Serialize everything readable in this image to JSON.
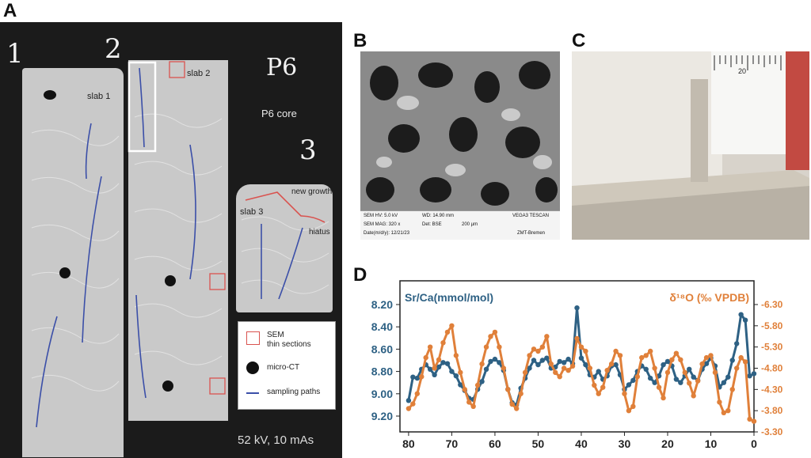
{
  "panels": {
    "a": {
      "letter": "A",
      "slab1": "slab 1",
      "slab2": "slab 2",
      "slab3": "slab 3",
      "core": "P6 core",
      "new_growth": "new growth",
      "hiatus": "hiatus",
      "hand1": "1",
      "hand2": "2",
      "hand3": "3",
      "hand_p6": "P6",
      "legend": {
        "sem_line1": "SEM",
        "sem_line2": "thin sections",
        "micro_ct": "micro-CT",
        "paths": "sampling paths"
      },
      "kv": "52 kV, 10 mAs"
    },
    "b": {
      "letter": "B",
      "sem": {
        "hv": "SEM HV: 5.0 kV",
        "wd": "WD: 14.90 mm",
        "vendor": "VEGA3 TESCAN",
        "mag": "SEM MAG: 320 x",
        "det": "Det: BSE",
        "scale": "200 µm",
        "date": "Date(m/d/y): 12/21/23",
        "lab": "ZMT-Bremen"
      }
    },
    "c": {
      "letter": "C",
      "ruler_label": "20"
    },
    "d": {
      "letter": "D"
    }
  },
  "colors": {
    "srca": "#2e6184",
    "d18o": "#e0803a",
    "sampling": "#3b4fa8",
    "sem_box": "#d9534f"
  },
  "chart_data": {
    "type": "line",
    "xlabel": "",
    "xlim": [
      82,
      0
    ],
    "x_ticks": [
      "80",
      "70",
      "60",
      "50",
      "40",
      "30",
      "20",
      "10",
      "0"
    ],
    "y_left": {
      "label": "Sr/Ca(mmol/mol)",
      "ticks": [
        "8.20",
        "8.40",
        "8.60",
        "8.80",
        "9.00",
        "9.20"
      ],
      "range": [
        8.2,
        9.2
      ],
      "inverted": true
    },
    "y_right": {
      "label": "δ¹⁸O (‰ VPDB)",
      "ticks": [
        "-6.30",
        "-5.80",
        "-5.30",
        "-4.80",
        "-4.30",
        "-3.80",
        "-3.30"
      ],
      "range": [
        -6.3,
        -3.3
      ],
      "inverted": false
    },
    "series": [
      {
        "name": "Sr/Ca(mmol/mol)",
        "axis": "left",
        "x": [
          80,
          79,
          78,
          77,
          76,
          75,
          74,
          73,
          72,
          71,
          70,
          69,
          68,
          67,
          66,
          65,
          64,
          63,
          62,
          61,
          60,
          59,
          58,
          57,
          56,
          55,
          54,
          53,
          52,
          51,
          50,
          49,
          48,
          47,
          46,
          45,
          44,
          43,
          42,
          41,
          40,
          39,
          38,
          37,
          36,
          35,
          34,
          33,
          32,
          31,
          30,
          29,
          28,
          27,
          26,
          25,
          24,
          23,
          22,
          21,
          20,
          19,
          18,
          17,
          16,
          15,
          14,
          13,
          12,
          11,
          10,
          9,
          8,
          7,
          6,
          5,
          4,
          3,
          2,
          1,
          0
        ],
        "values": [
          9.06,
          8.85,
          8.86,
          8.78,
          8.74,
          8.78,
          8.83,
          8.76,
          8.72,
          8.73,
          8.8,
          8.84,
          8.92,
          8.97,
          9.04,
          9.05,
          8.96,
          8.89,
          8.78,
          8.71,
          8.69,
          8.72,
          8.79,
          8.96,
          9.08,
          9.1,
          8.95,
          8.86,
          8.77,
          8.7,
          8.74,
          8.7,
          8.68,
          8.77,
          8.76,
          8.71,
          8.72,
          8.69,
          8.73,
          8.23,
          8.68,
          8.74,
          8.83,
          8.85,
          8.8,
          8.87,
          8.84,
          8.75,
          8.74,
          8.83,
          8.96,
          8.92,
          8.88,
          8.8,
          8.75,
          8.78,
          8.86,
          8.9,
          8.84,
          8.74,
          8.71,
          8.75,
          8.87,
          8.9,
          8.84,
          8.78,
          8.85,
          8.88,
          8.78,
          8.73,
          8.68,
          8.75,
          8.94,
          8.9,
          8.85,
          8.7,
          8.55,
          8.29,
          8.34,
          8.84,
          8.82
        ]
      },
      {
        "name": "δ¹⁸O (‰ VPDB)",
        "axis": "right",
        "x": [
          80,
          79,
          78,
          77,
          76,
          75,
          74,
          73,
          72,
          71,
          70,
          69,
          68,
          67,
          66,
          65,
          64,
          63,
          62,
          61,
          60,
          59,
          58,
          57,
          56,
          55,
          54,
          53,
          52,
          51,
          50,
          49,
          48,
          47,
          46,
          45,
          44,
          43,
          42,
          41,
          40,
          39,
          38,
          37,
          36,
          35,
          34,
          33,
          32,
          31,
          30,
          29,
          28,
          27,
          26,
          25,
          24,
          23,
          22,
          21,
          20,
          19,
          18,
          17,
          16,
          15,
          14,
          13,
          12,
          11,
          10,
          9,
          8,
          7,
          6,
          5,
          4,
          3,
          2,
          1,
          0
        ],
        "values": [
          -3.85,
          -3.96,
          -4.2,
          -4.6,
          -5.05,
          -5.3,
          -4.8,
          -5.0,
          -5.4,
          -5.65,
          -5.8,
          -5.1,
          -4.7,
          -4.3,
          -4.0,
          -3.9,
          -4.4,
          -4.9,
          -5.3,
          -5.55,
          -5.65,
          -5.3,
          -4.8,
          -4.3,
          -3.95,
          -3.85,
          -4.2,
          -4.7,
          -5.1,
          -5.25,
          -5.2,
          -5.3,
          -5.55,
          -4.9,
          -4.7,
          -4.6,
          -4.8,
          -4.75,
          -4.85,
          -5.5,
          -5.3,
          -5.2,
          -4.8,
          -4.4,
          -4.2,
          -4.35,
          -4.75,
          -4.9,
          -5.2,
          -5.1,
          -4.2,
          -3.8,
          -3.9,
          -4.6,
          -5.05,
          -5.1,
          -5.2,
          -4.8,
          -4.35,
          -4.1,
          -4.7,
          -5.0,
          -5.15,
          -5.0,
          -4.7,
          -4.45,
          -4.15,
          -4.5,
          -4.9,
          -5.05,
          -5.1,
          -4.7,
          -4.0,
          -3.75,
          -3.8,
          -4.3,
          -4.8,
          -5.05,
          -4.95,
          -3.6,
          -3.55
        ]
      }
    ]
  }
}
